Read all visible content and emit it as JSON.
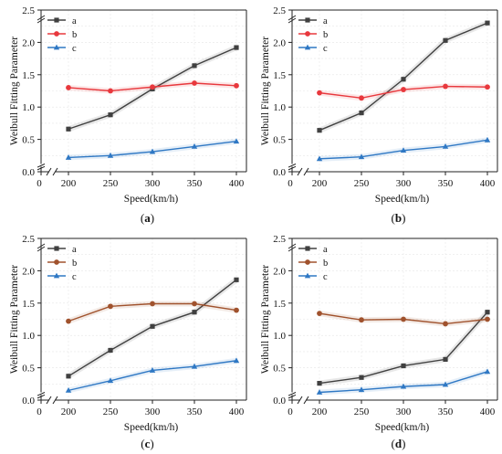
{
  "figure": {
    "panels": [
      {
        "caption_open": "(",
        "caption_letter": "a",
        "caption_close": ")"
      },
      {
        "caption_open": "(",
        "caption_letter": "b",
        "caption_close": ")"
      },
      {
        "caption_open": "(",
        "caption_letter": "c",
        "caption_close": ")"
      },
      {
        "caption_open": "(",
        "caption_letter": "d",
        "caption_close": ")"
      }
    ]
  },
  "chart_data": [
    {
      "type": "line",
      "xlabel": "Speed(km/h)",
      "ylabel": "Weibull Fitting Parameter",
      "x": [
        200,
        250,
        300,
        350,
        400
      ],
      "x_ticks": [
        "0",
        "200",
        "250",
        "300",
        "350",
        "400"
      ],
      "y_ticks": [
        "0.0",
        "0.5",
        "1.0",
        "1.5",
        "2.0",
        "2.5"
      ],
      "ylim": [
        0,
        2.5
      ],
      "grid": true,
      "legend_position": "top-left",
      "series": [
        {
          "name": "a",
          "color": "#404040",
          "marker": "square",
          "values": [
            0.66,
            0.88,
            1.28,
            1.64,
            1.92
          ]
        },
        {
          "name": "b",
          "color": "#e8383d",
          "marker": "circle",
          "values": [
            1.3,
            1.25,
            1.31,
            1.37,
            1.33
          ]
        },
        {
          "name": "c",
          "color": "#2f78c4",
          "marker": "triangle",
          "values": [
            0.22,
            0.25,
            0.31,
            0.39,
            0.47
          ]
        }
      ]
    },
    {
      "type": "line",
      "xlabel": "Speed(km/h)",
      "ylabel": "Weibull Fitting Parameter",
      "x": [
        200,
        250,
        300,
        350,
        400
      ],
      "x_ticks": [
        "0",
        "200",
        "250",
        "300",
        "350",
        "400"
      ],
      "y_ticks": [
        "0.0",
        "0.5",
        "1.0",
        "1.5",
        "2.0",
        "2.5"
      ],
      "ylim": [
        0,
        2.5
      ],
      "grid": true,
      "legend_position": "top-left",
      "series": [
        {
          "name": "a",
          "color": "#404040",
          "marker": "square",
          "values": [
            0.64,
            0.91,
            1.43,
            2.03,
            2.3
          ]
        },
        {
          "name": "b",
          "color": "#e8383d",
          "marker": "circle",
          "values": [
            1.22,
            1.14,
            1.27,
            1.32,
            1.31
          ]
        },
        {
          "name": "c",
          "color": "#2f78c4",
          "marker": "triangle",
          "values": [
            0.2,
            0.23,
            0.33,
            0.39,
            0.49
          ]
        }
      ]
    },
    {
      "type": "line",
      "xlabel": "Speed(km/h)",
      "ylabel": "Weibull Fitting Parameter",
      "x": [
        200,
        250,
        300,
        350,
        400
      ],
      "x_ticks": [
        "0",
        "200",
        "250",
        "300",
        "350",
        "400"
      ],
      "y_ticks": [
        "0.0",
        "0.5",
        "1.0",
        "1.5",
        "2.0",
        "2.5"
      ],
      "ylim": [
        0,
        2.5
      ],
      "grid": true,
      "legend_position": "top-left",
      "series": [
        {
          "name": "a",
          "color": "#404040",
          "marker": "square",
          "values": [
            0.37,
            0.77,
            1.14,
            1.36,
            1.86
          ]
        },
        {
          "name": "b",
          "color": "#a0522d",
          "marker": "circle",
          "values": [
            1.22,
            1.45,
            1.49,
            1.49,
            1.39
          ]
        },
        {
          "name": "c",
          "color": "#2f78c4",
          "marker": "triangle",
          "values": [
            0.15,
            0.3,
            0.46,
            0.52,
            0.61
          ]
        }
      ]
    },
    {
      "type": "line",
      "xlabel": "Speed(km/h)",
      "ylabel": "Weibull Fitting Parameter",
      "x": [
        200,
        250,
        300,
        350,
        400
      ],
      "x_ticks": [
        "0",
        "200",
        "250",
        "300",
        "350",
        "400"
      ],
      "y_ticks": [
        "0.0",
        "0.5",
        "1.0",
        "1.5",
        "2.0",
        "2.5"
      ],
      "ylim": [
        0,
        2.5
      ],
      "grid": true,
      "legend_position": "top-left",
      "series": [
        {
          "name": "a",
          "color": "#404040",
          "marker": "square",
          "values": [
            0.26,
            0.35,
            0.53,
            0.63,
            1.36
          ]
        },
        {
          "name": "b",
          "color": "#a0522d",
          "marker": "circle",
          "values": [
            1.34,
            1.24,
            1.25,
            1.18,
            1.25
          ]
        },
        {
          "name": "c",
          "color": "#2f78c4",
          "marker": "triangle",
          "values": [
            0.12,
            0.16,
            0.21,
            0.24,
            0.44
          ]
        }
      ]
    }
  ]
}
